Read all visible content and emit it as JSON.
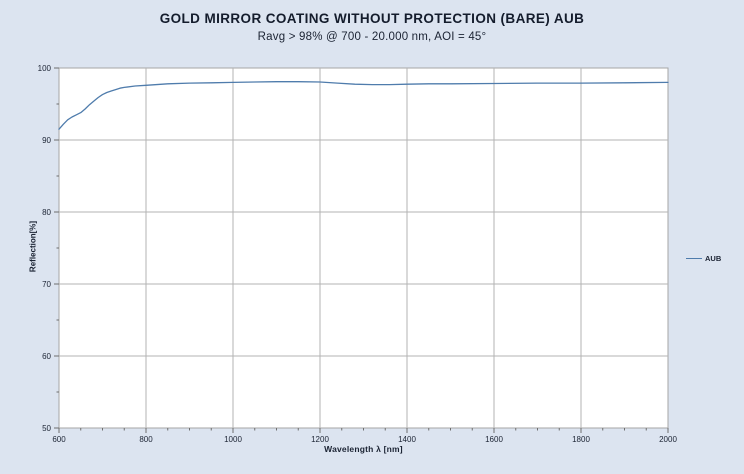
{
  "chart_data": {
    "type": "line",
    "title": "GOLD MIRROR COATING WITHOUT PROTECTION (BARE) AUB",
    "subtitle": "Ravg > 98% @ 700 - 20.000 nm, AOI = 45°",
    "xlabel": "Wavelength λ [nm]",
    "ylabel": "Reflection[%]",
    "xlim": [
      600,
      2000
    ],
    "ylim": [
      50,
      100
    ],
    "x_major_ticks": [
      600,
      800,
      1000,
      1200,
      1400,
      1600,
      1800,
      2000
    ],
    "x_minor_step": 50,
    "y_major_ticks": [
      50,
      60,
      70,
      80,
      90,
      100
    ],
    "y_minor_step": 5,
    "grid": "major",
    "legend_position": "right-outside",
    "colors": {
      "page_background": "#dce4f0",
      "plot_background": "#ffffff",
      "gridline": "#b3b3b3",
      "plot_border": "#a6a6a6",
      "tick": "#6e6e6e",
      "tick_text": "#1b2333",
      "series_line": "#4f7cac"
    },
    "series": [
      {
        "name": "AUB",
        "color": "#4f7cac",
        "x": [
          600,
          610,
          620,
          630,
          640,
          650,
          660,
          670,
          680,
          690,
          700,
          710,
          720,
          730,
          740,
          750,
          775,
          800,
          850,
          900,
          950,
          1000,
          1050,
          1100,
          1150,
          1200,
          1240,
          1280,
          1320,
          1360,
          1400,
          1450,
          1500,
          1600,
          1700,
          1800,
          1900,
          2000
        ],
        "y": [
          91.5,
          92.2,
          92.8,
          93.2,
          93.5,
          93.8,
          94.3,
          94.9,
          95.4,
          95.9,
          96.3,
          96.6,
          96.8,
          97.0,
          97.2,
          97.3,
          97.5,
          97.6,
          97.8,
          97.9,
          97.95,
          98.0,
          98.05,
          98.1,
          98.1,
          98.05,
          97.9,
          97.75,
          97.7,
          97.7,
          97.75,
          97.8,
          97.8,
          97.85,
          97.9,
          97.9,
          97.95,
          98.0
        ]
      }
    ]
  }
}
